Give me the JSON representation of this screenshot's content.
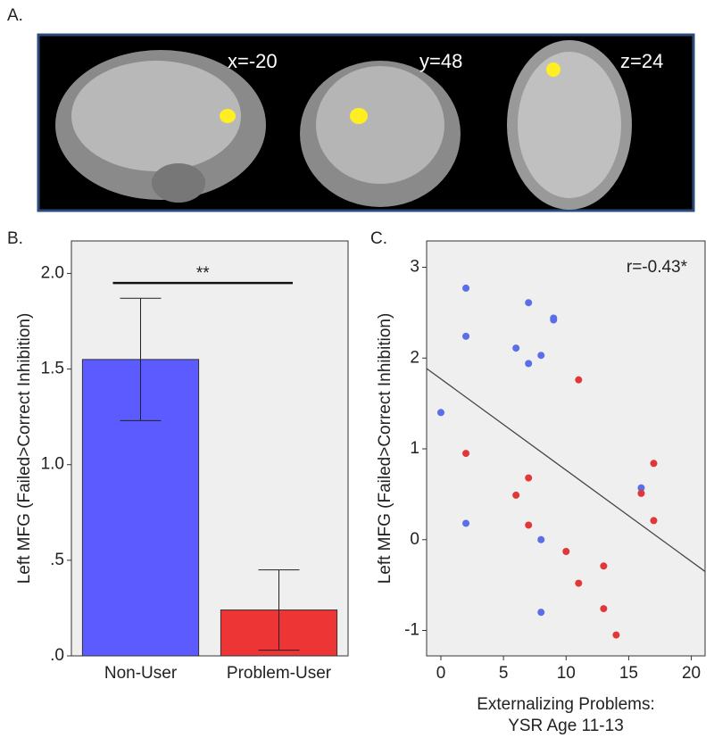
{
  "panel_a": {
    "label": "A.",
    "slices": [
      "x=-20",
      "y=48",
      "z=24"
    ]
  },
  "chart_data": [
    {
      "type": "bar",
      "panel_label": "B.",
      "ylabel": "Left MFG (Failed>Correct Inhibition)",
      "categories": [
        "Non-User",
        "Problem-User"
      ],
      "values": [
        1.55,
        0.24
      ],
      "errors": [
        0.32,
        0.21
      ],
      "colors": [
        "#5b5bff",
        "#ee3535"
      ],
      "ylim": [
        0,
        2.17
      ],
      "yticks": [
        {
          "value": 0,
          "label": ".0"
        },
        {
          "value": 0.5,
          "label": ".5"
        },
        {
          "value": 1,
          "label": "1.0"
        },
        1.5,
        {
          "value": 2,
          "label": "2.0"
        }
      ],
      "significance": {
        "y": 1.95,
        "label": "**"
      }
    },
    {
      "type": "scatter",
      "panel_label": "C.",
      "ylabel": "Left MFG (Failed>Correct Inhibition)",
      "xlabel": [
        "Externalizing Problems:",
        "YSR Age 11-13"
      ],
      "annotation": "r=-0.43*",
      "series": [
        {
          "color": "#5a6ee8",
          "x": [
            2,
            2,
            7,
            9,
            9,
            6,
            8,
            7,
            0,
            16,
            2,
            8,
            8
          ],
          "values": [
            2.77,
            2.24,
            2.61,
            2.44,
            2.42,
            2.11,
            2.03,
            1.94,
            1.4,
            0.57,
            0.18,
            0,
            -0.8
          ]
        },
        {
          "color": "#e03838",
          "x": [
            11,
            2,
            7,
            17,
            6,
            16,
            7,
            17,
            10,
            13,
            11,
            13,
            14
          ],
          "values": [
            1.76,
            0.95,
            0.68,
            0.84,
            0.49,
            0.51,
            0.16,
            0.21,
            -0.13,
            -0.29,
            -0.48,
            -0.76,
            -1.05
          ]
        }
      ],
      "fit_line": {
        "intercept": 1.77,
        "slope": -0.1005
      },
      "xlim": [
        -1.14,
        21.1
      ],
      "ylim": [
        -1.28,
        3.29
      ],
      "xticks": [
        0,
        5,
        10,
        15,
        20
      ],
      "yticks": [
        -1,
        0,
        1,
        2,
        3
      ]
    }
  ]
}
